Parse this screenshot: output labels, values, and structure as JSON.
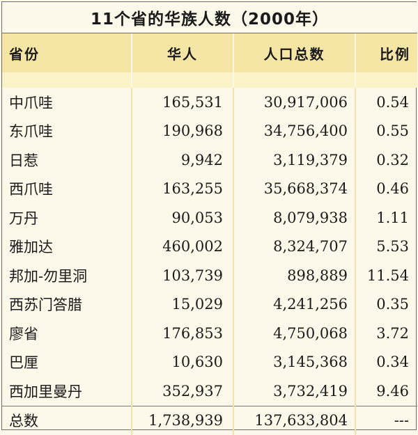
{
  "title": "11个省的华族人数（2000年）",
  "headers": [
    "省份",
    "华人",
    "人口总数",
    "比例"
  ],
  "rows": [
    {
      "province": "中爪哇",
      "chinese": "165,531",
      "population": "30,917,006",
      "ratio": "0.54"
    },
    {
      "province": "东爪哇",
      "chinese": "190,968",
      "population": "34,756,400",
      "ratio": "0.55"
    },
    {
      "province": "日惹",
      "chinese": "9,942",
      "population": "3,119,379",
      "ratio": "0.32"
    },
    {
      "province": "西爪哇",
      "chinese": "163,255",
      "population": "35,668,374",
      "ratio": "0.46"
    },
    {
      "province": "万丹",
      "chinese": "90,053",
      "population": "8,079,938",
      "ratio": "1.11"
    },
    {
      "province": "雅加达",
      "chinese": "460,002",
      "population": "8,324,707",
      "ratio": "5.53"
    },
    {
      "province": "邦加-勿里洞",
      "chinese": "103,739",
      "population": "898,889",
      "ratio": "11.54"
    },
    {
      "province": "西苏门答腊",
      "chinese": "15,029",
      "population": "4,241,256",
      "ratio": "0.35"
    },
    {
      "province": "廖省",
      "chinese": "176,853",
      "population": "4,750,068",
      "ratio": "3.72"
    },
    {
      "province": "巴厘",
      "chinese": "10,630",
      "population": "3,145,368",
      "ratio": "0.34"
    },
    {
      "province": "西加里曼丹",
      "chinese": "352,937",
      "population": "3,732,419",
      "ratio": "9.46"
    }
  ],
  "total": {
    "province": "总数",
    "chinese": "1,738,939",
    "population": "137,633,804",
    "ratio": "---"
  }
}
